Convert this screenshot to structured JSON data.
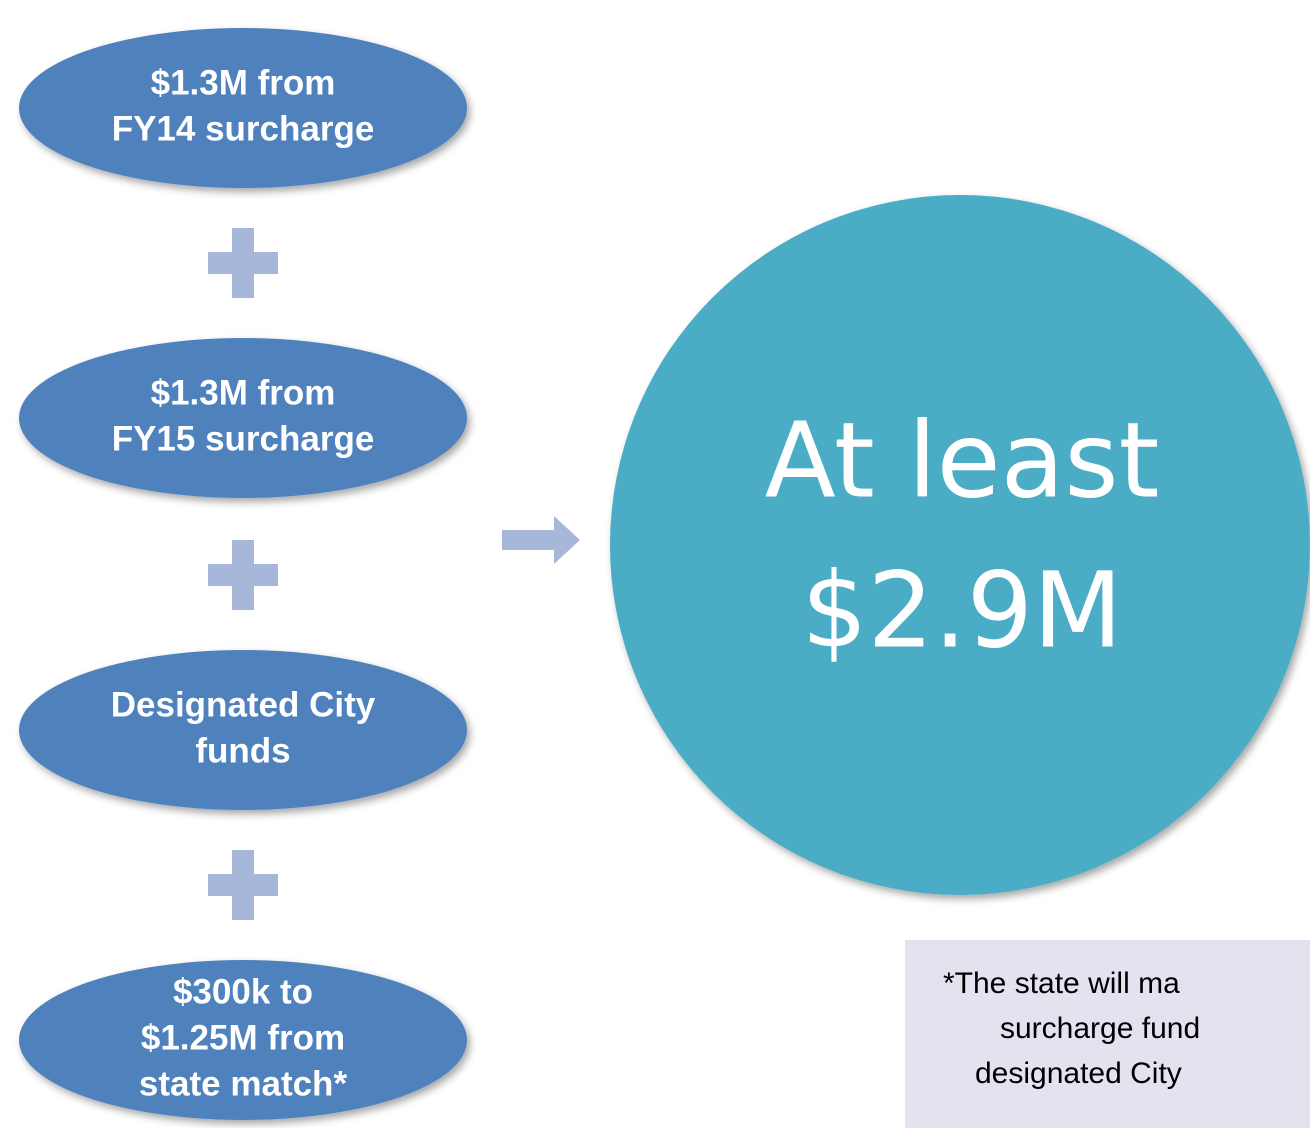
{
  "nodes": [
    {
      "lines": [
        "$1.3M from",
        "FY14 surcharge"
      ]
    },
    {
      "lines": [
        "$1.3M from",
        "FY15 surcharge"
      ]
    },
    {
      "lines": [
        "Designated City",
        "funds"
      ]
    },
    {
      "lines": [
        "$300k to",
        "$1.25M from",
        "state match*"
      ]
    }
  ],
  "result": {
    "lines": [
      "At least",
      "$2.9M"
    ]
  },
  "note": {
    "lines": [
      "*The state will ma",
      "surcharge fund",
      "designated City"
    ]
  }
}
